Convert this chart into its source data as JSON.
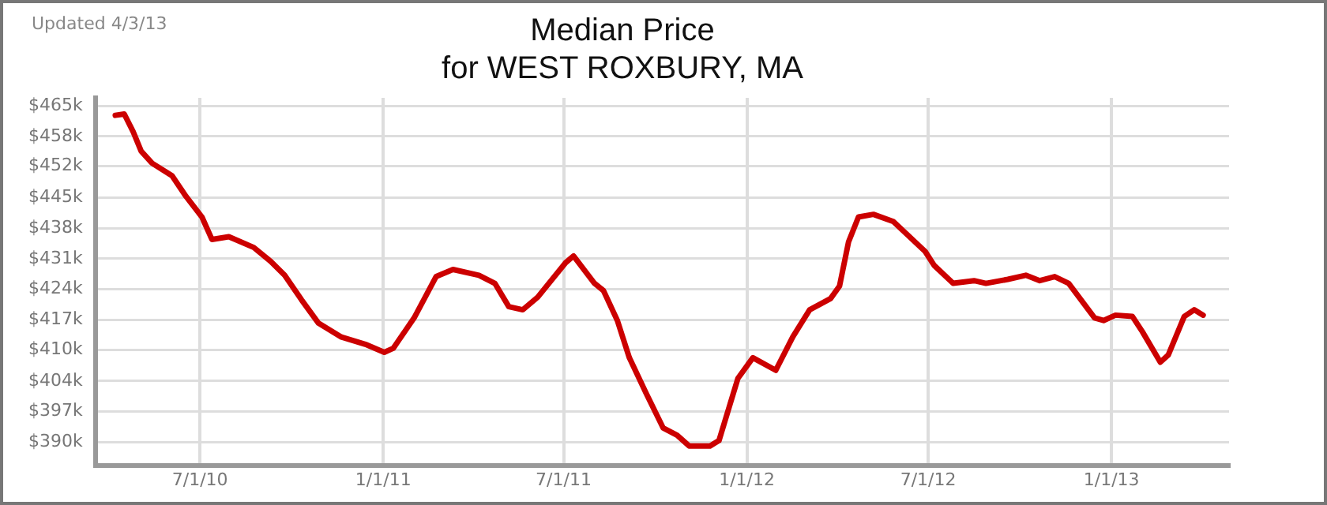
{
  "chart_data": {
    "type": "line",
    "title": "Median Price",
    "subtitle": "for WEST ROXBURY, MA",
    "annotations": [
      "Updated 4/3/13"
    ],
    "x": [
      "2010-04-07",
      "2010-04-16",
      "2010-04-25",
      "2010-05-03",
      "2010-05-14",
      "2010-06-03",
      "2010-06-17",
      "2010-07-03",
      "2010-07-13",
      "2010-07-30",
      "2010-08-24",
      "2010-09-10",
      "2010-09-24",
      "2010-10-11",
      "2010-10-28",
      "2010-11-20",
      "2010-12-14",
      "2011-01-02",
      "2011-01-11",
      "2011-02-01",
      "2011-02-23",
      "2011-03-12",
      "2011-04-07",
      "2011-04-23",
      "2011-05-07",
      "2011-05-21",
      "2011-06-05",
      "2011-07-03",
      "2011-07-11",
      "2011-08-01",
      "2011-08-10",
      "2011-08-24",
      "2011-09-05",
      "2011-09-22",
      "2011-10-09",
      "2011-10-23",
      "2011-11-04",
      "2011-11-25",
      "2011-12-04",
      "2011-12-23",
      "2012-01-07",
      "2012-01-30",
      "2012-02-16",
      "2012-03-04",
      "2012-03-25",
      "2012-04-03",
      "2012-04-12",
      "2012-04-22",
      "2012-05-07",
      "2012-05-27",
      "2012-06-28",
      "2012-07-07",
      "2012-07-26",
      "2012-08-16",
      "2012-08-28",
      "2012-09-19",
      "2012-10-07",
      "2012-10-21",
      "2012-11-05",
      "2012-11-19",
      "2012-12-15",
      "2012-12-24",
      "2013-01-05",
      "2013-01-22",
      "2013-02-01",
      "2013-02-19",
      "2013-02-27",
      "2013-03-15",
      "2013-03-25",
      "2013-04-03"
    ],
    "series": [
      {
        "color": "#cc0000",
        "values": [
          462.9,
          463.2,
          459.2,
          454.9,
          452.2,
          449.4,
          444.8,
          440.2,
          435.2,
          435.8,
          433.4,
          430.3,
          427.2,
          421.7,
          416.5,
          413.4,
          411.8,
          410.0,
          410.9,
          417.7,
          426.9,
          428.5,
          427.2,
          425.4,
          420.2,
          419.5,
          422.3,
          430.0,
          431.5,
          425.4,
          423.8,
          417.1,
          408.8,
          400.8,
          393.1,
          391.5,
          389.1,
          389.1,
          390.3,
          404.2,
          408.8,
          406.0,
          413.4,
          419.5,
          422.0,
          424.8,
          434.6,
          440.2,
          440.8,
          439.2,
          432.5,
          429.4,
          425.4,
          426.0,
          425.4,
          426.3,
          427.2,
          426.0,
          426.9,
          425.4,
          417.7,
          417.1,
          418.3,
          418.0,
          414.6,
          407.8,
          409.4,
          418.0,
          419.5,
          418.3
        ]
      }
    ],
    "xlim": [
      "2010-03-18",
      "2013-04-29"
    ],
    "xticks": [
      {
        "value": "2010-07-01",
        "label": "7/1/10"
      },
      {
        "value": "2011-01-01",
        "label": "1/1/11"
      },
      {
        "value": "2011-07-01",
        "label": "7/1/11"
      },
      {
        "value": "2012-01-01",
        "label": "1/1/12"
      },
      {
        "value": "2012-07-01",
        "label": "7/1/12"
      },
      {
        "value": "2013-01-01",
        "label": "1/1/13"
      }
    ],
    "ylim": [
      384.8,
      466.8
    ],
    "yticks": [
      {
        "value": 390,
        "label": "$390k"
      },
      {
        "value": 396.8,
        "label": "$397k"
      },
      {
        "value": 403.6,
        "label": "$404k"
      },
      {
        "value": 410.5,
        "label": "$410k"
      },
      {
        "value": 417.3,
        "label": "$417k"
      },
      {
        "value": 424.1,
        "label": "$424k"
      },
      {
        "value": 430.9,
        "label": "$431k"
      },
      {
        "value": 437.7,
        "label": "$438k"
      },
      {
        "value": 444.5,
        "label": "$445k"
      },
      {
        "value": 451.6,
        "label": "$452k"
      },
      {
        "value": 458.2,
        "label": "$458k"
      },
      {
        "value": 465,
        "label": "$465k"
      }
    ],
    "grid": true,
    "legend": false,
    "marker": "none",
    "line_style": "solid"
  }
}
